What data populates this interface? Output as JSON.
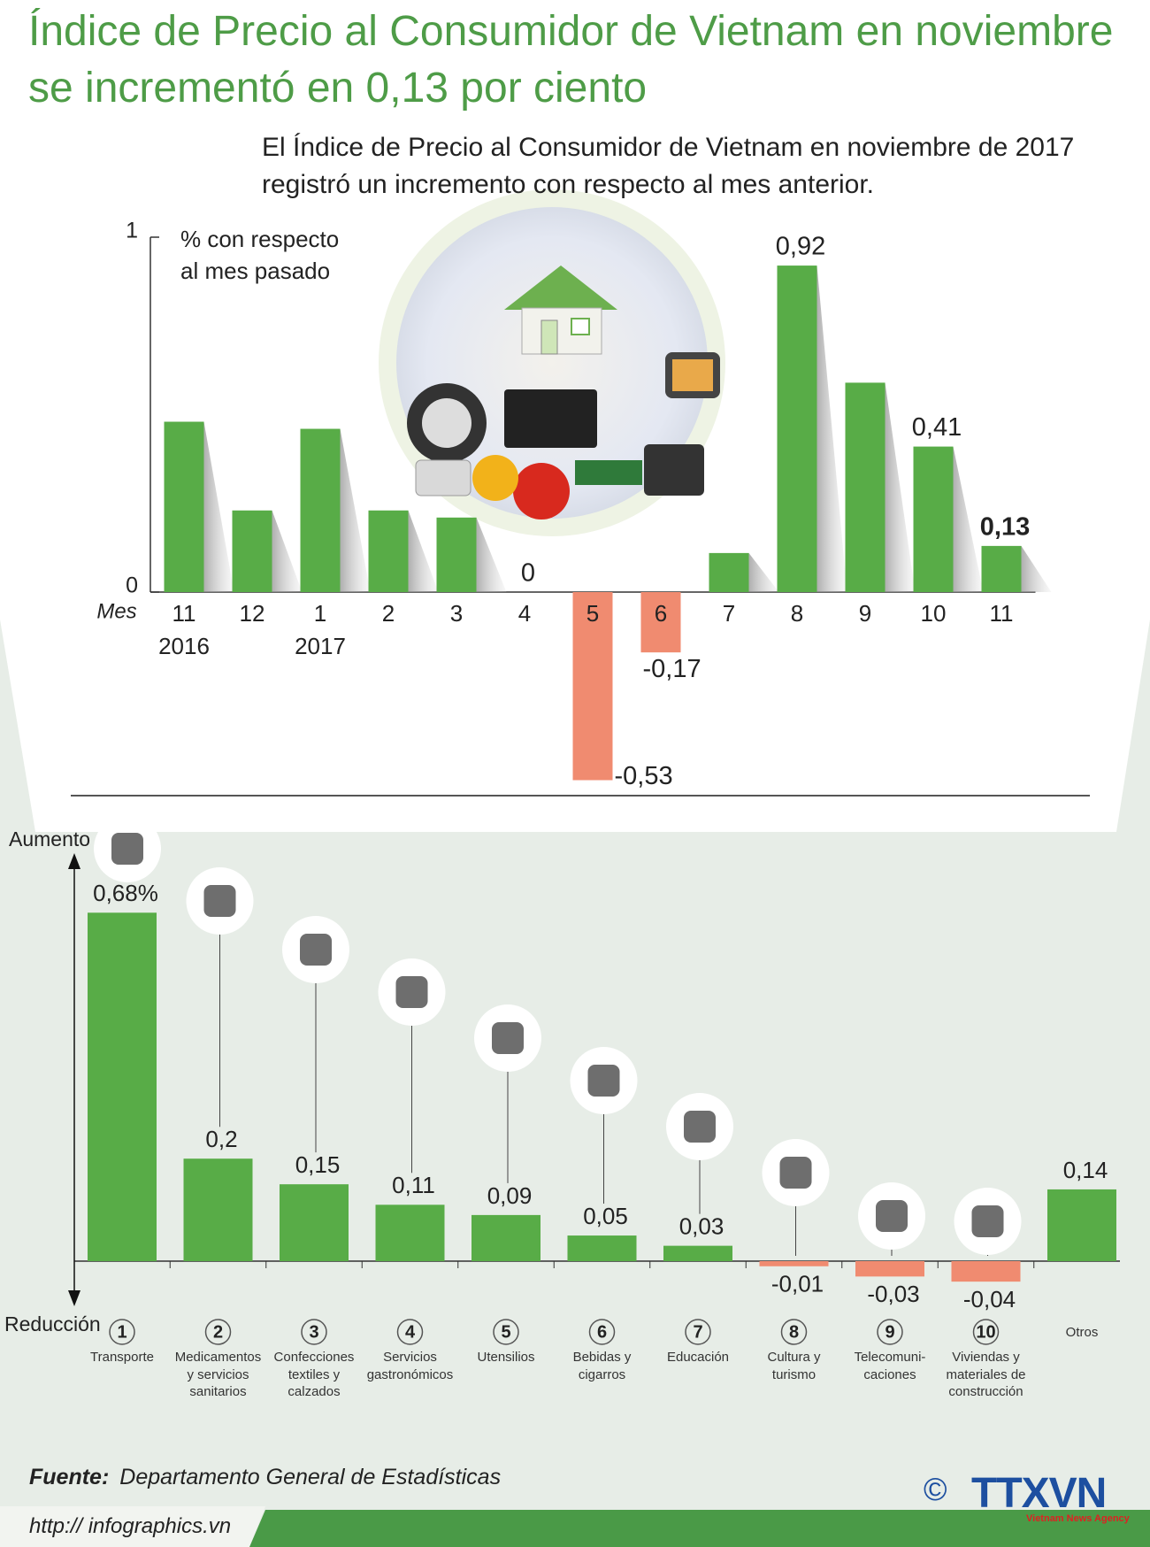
{
  "header": {
    "title": "Índice de Precio al Consumidor de Vietnam en noviembre\nse incrementó en 0,13 por ciento",
    "subtitle": "El Índice de Precio al Consumidor de Vietnam en noviembre de 2017\nregistró un incremento con respecto al mes anterior."
  },
  "chart_data": [
    {
      "type": "bar",
      "y_label": "% con respecto\nal mes pasado",
      "x_label": "Mes",
      "categories": [
        "11",
        "12",
        "1",
        "2",
        "3",
        "4",
        "5",
        "6",
        "7",
        "8",
        "9",
        "10",
        "11"
      ],
      "category_years": [
        "2016",
        null,
        "2017",
        null,
        null,
        null,
        null,
        null,
        null,
        null,
        null,
        null,
        null
      ],
      "values": [
        0.48,
        0.23,
        0.46,
        0.23,
        0.21,
        0,
        -0.53,
        -0.17,
        0.11,
        0.92,
        0.59,
        0.41,
        0.13
      ],
      "value_labels": [
        null,
        null,
        null,
        null,
        null,
        "0",
        "-0,53",
        "-0,17",
        null,
        "0,92",
        null,
        "0,41",
        "0,13"
      ],
      "color": "#58ac47",
      "negative_color": "#f08b70",
      "ylim": [
        0,
        1
      ],
      "yticks": [
        0,
        1
      ]
    },
    {
      "type": "bar",
      "y_label_top": "Aumento",
      "y_label_bottom": "Reducción",
      "category_numbers": [
        1,
        2,
        3,
        4,
        5,
        6,
        7,
        8,
        9,
        10,
        null
      ],
      "categories": [
        "Transporte",
        "Medicamentos\ny servicios\nsanitarios",
        "Confecciones\ntextiles y\ncalzados",
        "Servicios\ngastronómicos",
        "Utensilios",
        "Bebidas y\ncigarros",
        "Educación",
        "Cultura y\nturismo",
        "Telecomuni-\ncaciones",
        "Viviendas y\nmateriales de\nconstrucción",
        "Otros"
      ],
      "values": [
        0.68,
        0.2,
        0.15,
        0.11,
        0.09,
        0.05,
        0.03,
        -0.01,
        -0.03,
        -0.04,
        0.14
      ],
      "value_labels": [
        "0,68%",
        "0,2",
        "0,15",
        "0,11",
        "0,09",
        "0,05",
        "0,03",
        "-0,01",
        "-0,03",
        "-0,04",
        "0,14"
      ],
      "color": "#58ac47",
      "negative_color": "#f08b70"
    }
  ],
  "footer": {
    "source_label": "Fuente:",
    "source": "Departamento General de Estadísticas",
    "url": "http:// infographics.vn",
    "copyright": "©",
    "logo": "TTXVN",
    "logo_subtitle": "Vietnam News Agency"
  }
}
